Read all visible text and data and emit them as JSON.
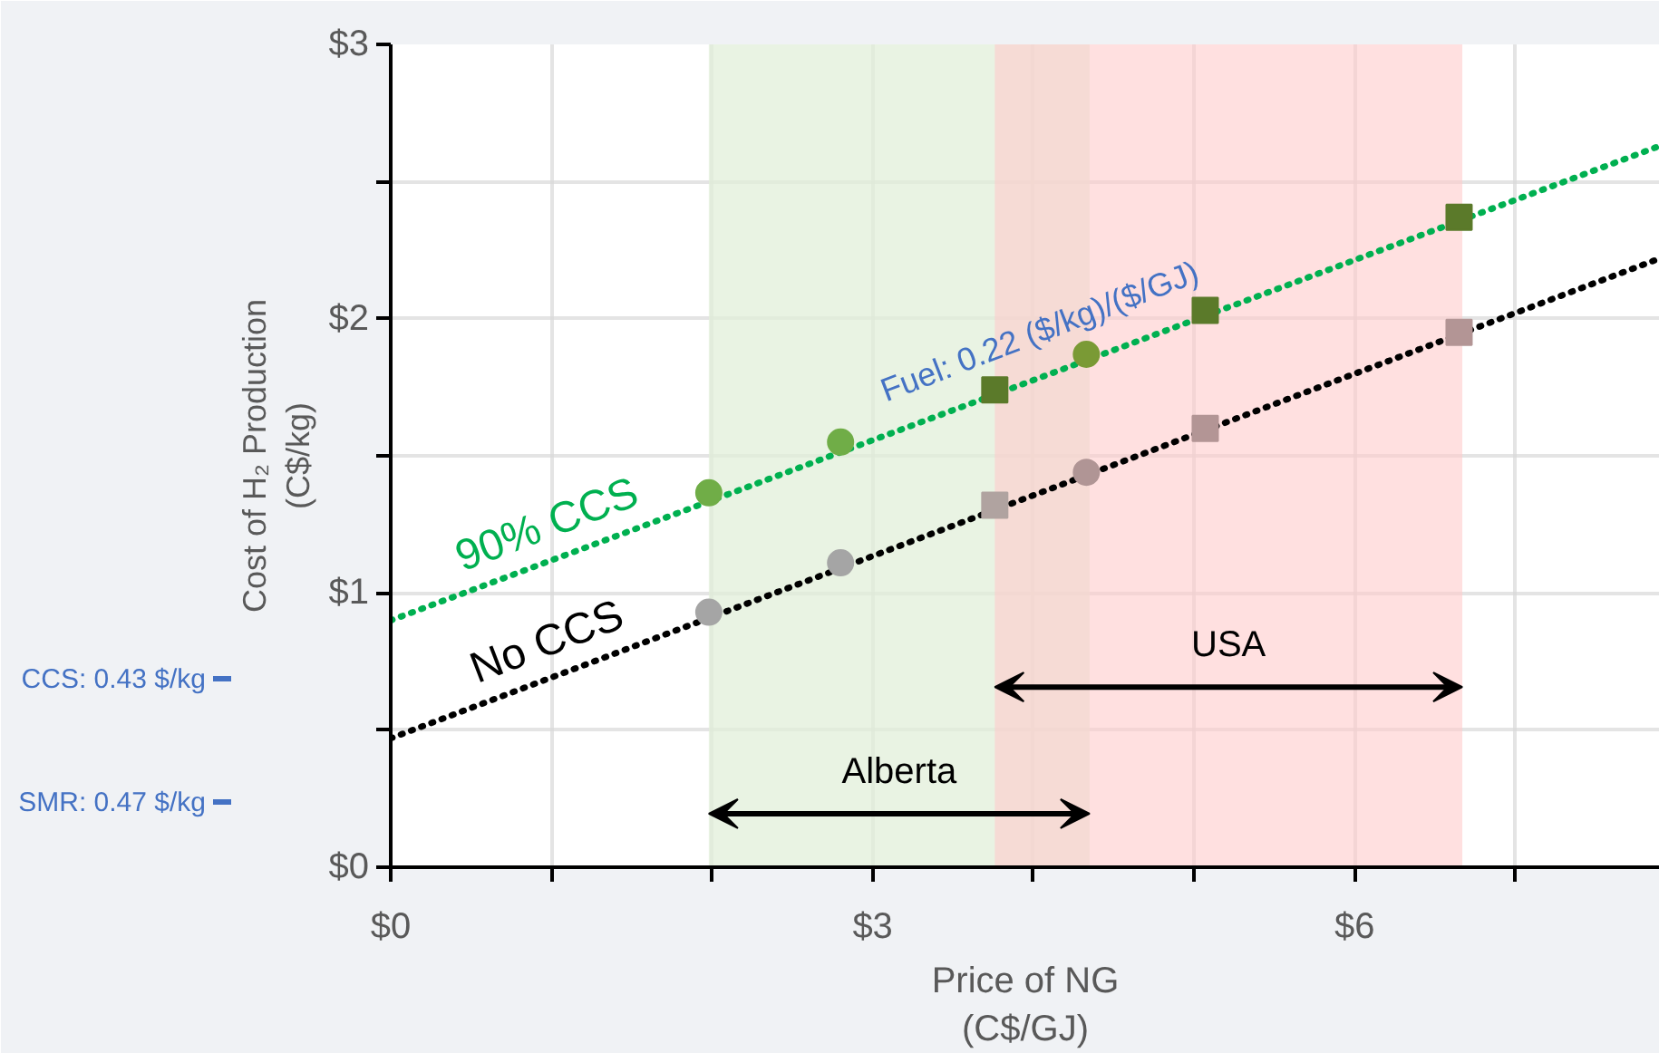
{
  "chart_data": {
    "type": "line",
    "xlabel": "Price of NG\n(C$/GJ)",
    "ylabel": "Cost of H₂ Production\n(C$/kg)",
    "xlim": [
      0,
      7.9
    ],
    "ylim": [
      0,
      3
    ],
    "xticks": [
      {
        "value": 0,
        "label": "$0"
      },
      {
        "value": 1,
        "label": null
      },
      {
        "value": 2,
        "label": null
      },
      {
        "value": 3,
        "label": "$3"
      },
      {
        "value": 4,
        "label": null
      },
      {
        "value": 5,
        "label": null
      },
      {
        "value": 6,
        "label": "$6"
      },
      {
        "value": 7,
        "label": null
      }
    ],
    "yticks": [
      {
        "value": 0,
        "label": "$0"
      },
      {
        "value": 0.5,
        "label": null
      },
      {
        "value": 1,
        "label": "$1"
      },
      {
        "value": 1.5,
        "label": null
      },
      {
        "value": 2,
        "label": "$2"
      },
      {
        "value": 2.5,
        "label": null
      },
      {
        "value": 3,
        "label": "$3"
      }
    ],
    "grid": true,
    "series": [
      {
        "name": "90% CCS",
        "type": "line",
        "color": "#00b050",
        "line_style": "dotted",
        "marker": "none",
        "x": [
          0,
          7.9
        ],
        "values": [
          0.9,
          2.63
        ]
      },
      {
        "name": "No CCS",
        "type": "line",
        "color": "#000000",
        "line_style": "dotted",
        "marker": "none",
        "x": [
          0,
          7.9
        ],
        "values": [
          0.47,
          2.22
        ]
      },
      {
        "type": "scatter",
        "marker": "circle",
        "x": [
          1.98,
          2.8,
          4.33
        ],
        "values": [
          1.365,
          1.55,
          1.87
        ],
        "colors": [
          "#70ad47",
          "#70ad47",
          "#7a9a35"
        ]
      },
      {
        "type": "scatter",
        "marker": "square",
        "x": [
          3.76,
          5.07,
          6.65
        ],
        "values": [
          1.74,
          2.03,
          2.37
        ],
        "colors": [
          "#5b7a2a",
          "#5b7a2a",
          "#5b7a2a"
        ]
      },
      {
        "type": "scatter",
        "marker": "circle",
        "x": [
          1.98,
          2.8,
          4.33
        ],
        "values": [
          0.93,
          1.11,
          1.44
        ],
        "colors": [
          "#a5a5a5",
          "#a5a5a5",
          "#b09595"
        ]
      },
      {
        "type": "scatter",
        "marker": "square",
        "x": [
          3.76,
          5.07,
          6.65
        ],
        "values": [
          1.32,
          1.6,
          1.95
        ],
        "colors": [
          "#b0a3a0",
          "#b39595",
          "#b39595"
        ]
      }
    ],
    "bands": [
      {
        "axis": "x",
        "from": 1.98,
        "to": 4.35,
        "label": "Alberta",
        "color": "#e2efd9"
      },
      {
        "axis": "x",
        "from": 3.76,
        "to": 6.67,
        "label": "USA",
        "color": "#ffcccc"
      }
    ],
    "annotations": [
      {
        "text": "Fuel: 0.22 ($/kg)/($/GJ)",
        "x": 4.08,
        "y": 1.8
      },
      "CCS: 0.43 $/kg",
      "SMR: 0.47 $/kg"
    ]
  }
}
